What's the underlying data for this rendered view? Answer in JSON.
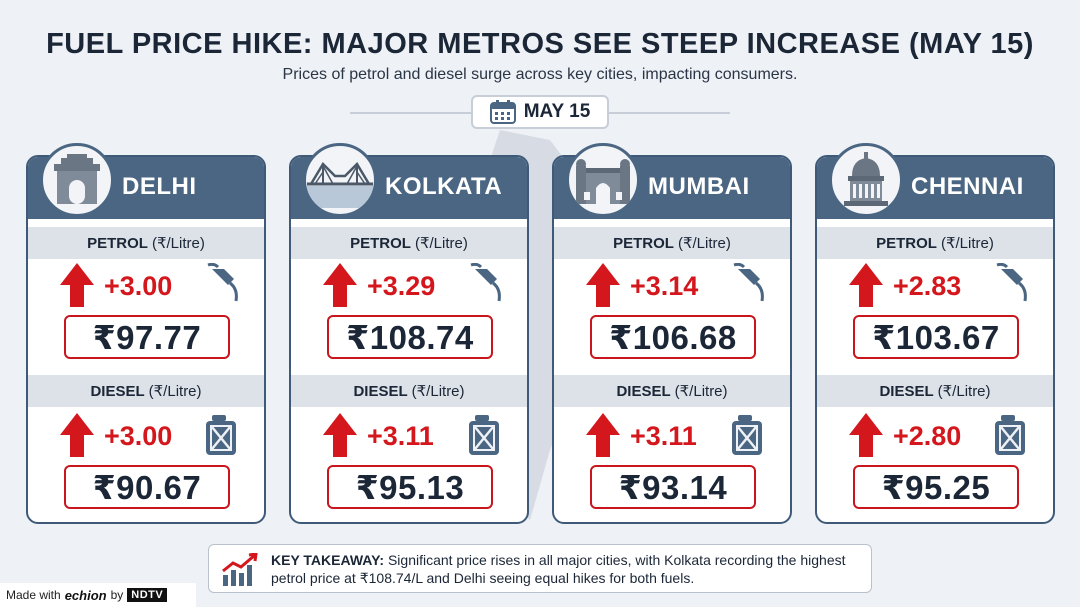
{
  "header": {
    "title": "FUEL PRICE HIKE: MAJOR METROS SEE STEEP INCREASE (MAY 15)",
    "subtitle": "Prices of petrol and diesel surge across key cities, impacting consumers.",
    "date": "MAY 15"
  },
  "labels": {
    "petrol": "PETROL",
    "diesel": "DIESEL",
    "unit": "(₹/Litre)"
  },
  "cities": [
    {
      "name": "DELHI",
      "petrol": {
        "hike": "+3.00",
        "price": "₹97.77"
      },
      "diesel": {
        "hike": "+3.00",
        "price": "₹90.67"
      }
    },
    {
      "name": "KOLKATA",
      "petrol": {
        "hike": "+3.29",
        "price": "₹108.74"
      },
      "diesel": {
        "hike": "+3.11",
        "price": "₹95.13"
      }
    },
    {
      "name": "MUMBAI",
      "petrol": {
        "hike": "+3.14",
        "price": "₹106.68"
      },
      "diesel": {
        "hike": "+3.11",
        "price": "₹93.14"
      }
    },
    {
      "name": "CHENNAI",
      "petrol": {
        "hike": "+2.83",
        "price": "₹103.67"
      },
      "diesel": {
        "hike": "+2.80",
        "price": "₹95.25"
      }
    }
  ],
  "takeaway": {
    "label": "KEY TAKEAWAY:",
    "text": "Significant price rises in all major cities, with Kolkata recording the highest petrol price at ₹108.74/L and Delhi seeing equal hikes for both fuels."
  },
  "footer": {
    "made_with": "Made with",
    "brand": "echion",
    "by": "by",
    "partner": "NDTV"
  },
  "icons": {
    "calendar": "calendar-icon",
    "delhi": "india-gate-icon",
    "kolkata": "howrah-bridge-icon",
    "mumbai": "gateway-of-india-icon",
    "chennai": "chennai-monument-icon",
    "arrow": "arrow-up-icon",
    "petrol": "fuel-nozzle-icon",
    "diesel": "jerry-can-icon",
    "trend": "trend-chart-icon"
  },
  "colors": {
    "card_header": "#4a6683",
    "accent_red": "#d3171d",
    "band": "#dde2e9",
    "background": "#eef1f5"
  }
}
